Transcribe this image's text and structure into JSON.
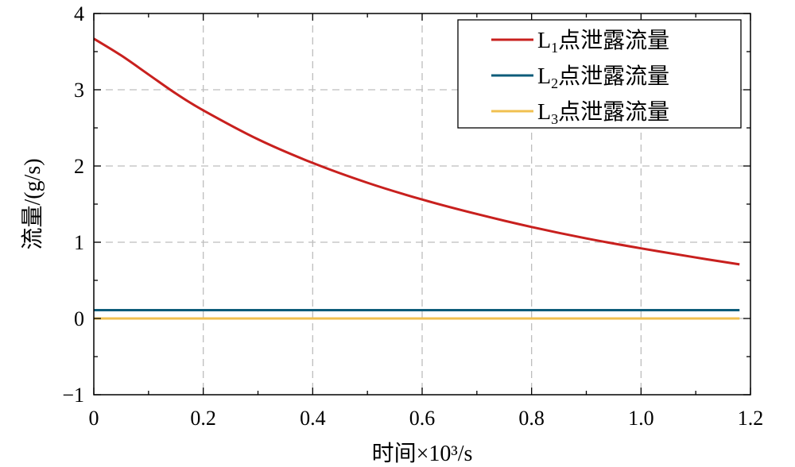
{
  "chart_data": {
    "type": "line",
    "xlabel": "时间×10³/s",
    "ylabel": "流量/(g/s)",
    "xlim": [
      0,
      1.2
    ],
    "ylim": [
      -1,
      4
    ],
    "xticks": [
      0,
      0.2,
      0.4,
      0.6,
      0.8,
      1.0,
      1.2
    ],
    "xtick_labels": [
      "0",
      "0.2",
      "0.4",
      "0.6",
      "0.8",
      "1.0",
      "1.2"
    ],
    "yticks": [
      -1,
      0,
      1,
      2,
      3,
      4
    ],
    "ytick_labels": [
      "−1",
      "0",
      "1",
      "2",
      "3",
      "4"
    ],
    "grid": true,
    "legend_position": "top-right",
    "series": [
      {
        "name": "L₁点泄露流量",
        "legend_base": "L",
        "legend_sub": "1",
        "legend_suffix": "点泄露流量",
        "color": "#c8201e",
        "x": [
          0,
          0.05,
          0.1,
          0.15,
          0.2,
          0.3,
          0.4,
          0.5,
          0.6,
          0.7,
          0.8,
          0.9,
          1.0,
          1.1,
          1.18
        ],
        "y": [
          3.67,
          3.45,
          3.2,
          2.95,
          2.73,
          2.35,
          2.04,
          1.78,
          1.56,
          1.37,
          1.2,
          1.05,
          0.92,
          0.8,
          0.71
        ]
      },
      {
        "name": "L₂点泄露流量",
        "legend_base": "L",
        "legend_sub": "2",
        "legend_suffix": "点泄露流量",
        "color": "#0d5c7a",
        "x": [
          0,
          1.18
        ],
        "y": [
          0.11,
          0.11
        ]
      },
      {
        "name": "L₃点泄露流量",
        "legend_base": "L",
        "legend_sub": "3",
        "legend_suffix": "点泄露流量",
        "color": "#f0c050",
        "x": [
          0,
          1.18
        ],
        "y": [
          0.0,
          0.0
        ]
      }
    ]
  }
}
